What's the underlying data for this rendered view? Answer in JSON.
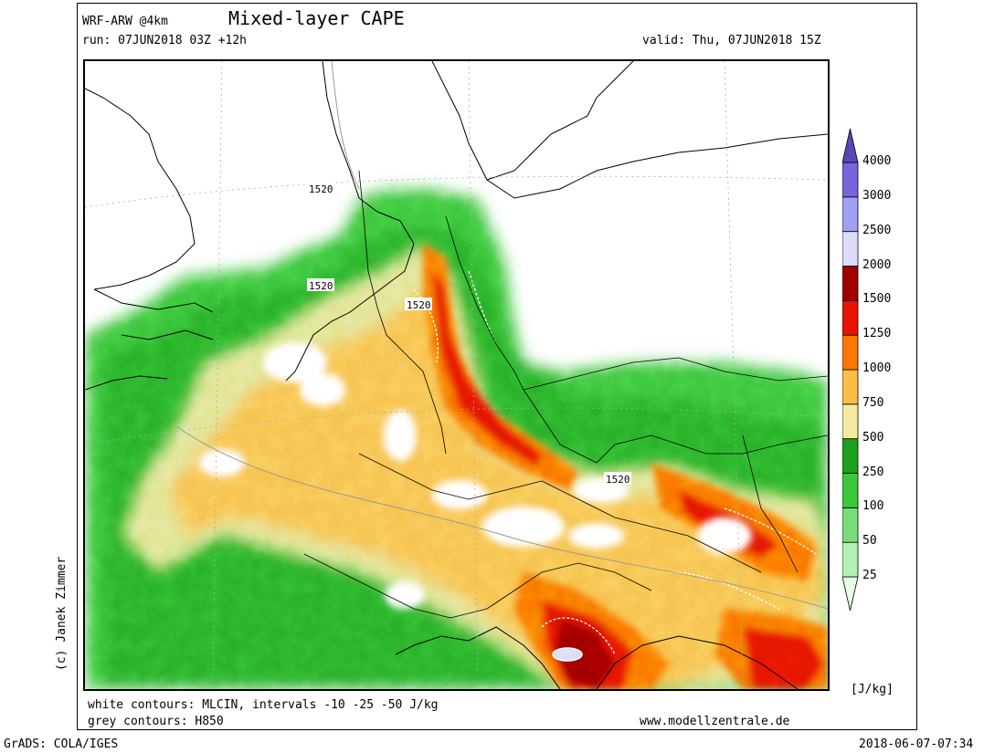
{
  "header": {
    "model": "WRF-ARW @4km",
    "title": "Mixed-layer CAPE",
    "run": "run: 07JUN2018 03Z +12h",
    "valid": "valid: Thu, 07JUN2018 15Z"
  },
  "map": {
    "contour_labels": [
      "1520",
      "1520",
      "1520",
      "1520"
    ]
  },
  "footer": {
    "white_contours": "white contours: MLCIN, intervals -10 -25 -50 J/kg",
    "grey_contours": "grey contours: H850",
    "website": "www.modellzentrale.de",
    "credit": "(c) Janek Zimmer",
    "grads": "GrADS: COLA/IGES",
    "timestamp": "2018-06-07-07:34"
  },
  "colorbar": {
    "unit": "[J/kg]",
    "levels": [
      "25",
      "50",
      "100",
      "250",
      "500",
      "750",
      "1000",
      "1250",
      "1500",
      "2000",
      "2500",
      "3000",
      "4000"
    ],
    "colors": [
      "#e6ffe6",
      "#b4f0b4",
      "#78dc78",
      "#3cc83c",
      "#1ea01e",
      "#f5eba0",
      "#fabe46",
      "#fa7800",
      "#e61400",
      "#a00000",
      "#dcdcfa",
      "#a0a0f0",
      "#7864dc",
      "#5a46b4"
    ]
  }
}
